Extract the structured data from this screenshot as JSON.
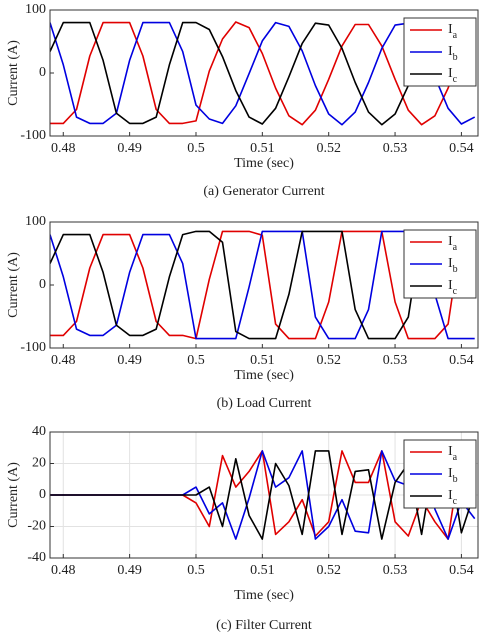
{
  "chart_data": [
    {
      "type": "line",
      "title": "(a) Generator Current",
      "xlabel": "Time (sec)",
      "ylabel": "Current (A)",
      "x": [
        0.478,
        0.48,
        0.482,
        0.484,
        0.486,
        0.488,
        0.49,
        0.492,
        0.494,
        0.496,
        0.498,
        0.5,
        0.502,
        0.504,
        0.506,
        0.508,
        0.51,
        0.512,
        0.514,
        0.516,
        0.518,
        0.52,
        0.522,
        0.524,
        0.526,
        0.528,
        0.53,
        0.532,
        0.534,
        0.536,
        0.538,
        0.54,
        0.542
      ],
      "series": [
        {
          "name": "Ia",
          "color": "#e00000",
          "values": [
            -80,
            -80,
            -58,
            27,
            80,
            80,
            80,
            27,
            -58,
            -80,
            -80,
            -76,
            3,
            54,
            81,
            72,
            31,
            -24,
            -68,
            -82,
            -59,
            -10,
            43,
            77,
            77,
            43,
            -10,
            -59,
            -82,
            -68,
            -24,
            31,
            72
          ]
        },
        {
          "name": "Ib",
          "color": "#0000e0",
          "values": [
            80,
            13,
            -70,
            -80,
            -80,
            -64,
            20,
            80,
            80,
            80,
            34,
            -51,
            -73,
            -80,
            -52,
            -1,
            51,
            80,
            74,
            35,
            -20,
            -65,
            -82,
            -62,
            -15,
            39,
            76,
            79,
            47,
            -6,
            -56,
            -81,
            -70
          ]
        },
        {
          "name": "Ic",
          "color": "#000000",
          "values": [
            34,
            80,
            80,
            80,
            20,
            -64,
            -80,
            -80,
            -70,
            13,
            80,
            80,
            69,
            26,
            -28,
            -70,
            -81,
            -56,
            -6,
            47,
            79,
            76,
            39,
            -15,
            -62,
            -82,
            -65,
            -20,
            35,
            74,
            80,
            51,
            -1
          ]
        }
      ],
      "xlim": [
        0.478,
        0.5425
      ],
      "ylim": [
        -100,
        100
      ],
      "xticks": [
        0.48,
        0.49,
        0.5,
        0.51,
        0.52,
        0.53,
        0.54
      ],
      "yticks": [
        -100,
        0,
        100
      ],
      "grid": false,
      "legend": "upper right"
    },
    {
      "type": "line",
      "title": "(b) Load Current",
      "xlabel": "Time (sec)",
      "ylabel": "Current (A)",
      "x": [
        0.478,
        0.48,
        0.482,
        0.484,
        0.486,
        0.488,
        0.49,
        0.492,
        0.494,
        0.496,
        0.498,
        0.5,
        0.502,
        0.504,
        0.506,
        0.508,
        0.51,
        0.512,
        0.514,
        0.516,
        0.518,
        0.52,
        0.522,
        0.524,
        0.526,
        0.528,
        0.53,
        0.532,
        0.534,
        0.536,
        0.538,
        0.54,
        0.542
      ],
      "series": [
        {
          "name": "Ia",
          "color": "#e00000",
          "values": [
            -80,
            -80,
            -58,
            27,
            80,
            80,
            80,
            27,
            -58,
            -80,
            -80,
            -85,
            9,
            85,
            85,
            85,
            79,
            -62,
            -85,
            -85,
            -85,
            -27,
            85,
            85,
            85,
            85,
            -27,
            -85,
            -85,
            -85,
            -62,
            79,
            85
          ]
        },
        {
          "name": "Ib",
          "color": "#0000e0",
          "values": [
            80,
            13,
            -70,
            -80,
            -80,
            -64,
            20,
            80,
            80,
            80,
            34,
            -85,
            -85,
            -85,
            -85,
            -3,
            85,
            85,
            85,
            85,
            -51,
            -85,
            -85,
            -85,
            -39,
            85,
            85,
            85,
            85,
            -15,
            -85,
            -85,
            -85
          ]
        },
        {
          "name": "Ic",
          "color": "#000000",
          "values": [
            34,
            80,
            80,
            80,
            20,
            -64,
            -80,
            -80,
            -70,
            13,
            80,
            85,
            85,
            68,
            -74,
            -85,
            -85,
            -85,
            -15,
            85,
            85,
            85,
            85,
            -39,
            -85,
            -85,
            -85,
            -51,
            85,
            85,
            85,
            85,
            -3
          ]
        }
      ],
      "xlim": [
        0.478,
        0.5425
      ],
      "ylim": [
        -100,
        100
      ],
      "xticks": [
        0.48,
        0.49,
        0.5,
        0.51,
        0.52,
        0.53,
        0.54
      ],
      "yticks": [
        -100,
        0,
        100
      ],
      "grid": false,
      "legend": "upper right"
    },
    {
      "type": "line",
      "title": "(c) Filter Current",
      "xlabel": "Time (sec)",
      "ylabel": "Current (A)",
      "x": [
        0.478,
        0.48,
        0.482,
        0.484,
        0.486,
        0.488,
        0.49,
        0.492,
        0.494,
        0.496,
        0.498,
        0.5,
        0.502,
        0.504,
        0.506,
        0.508,
        0.51,
        0.512,
        0.514,
        0.516,
        0.518,
        0.52,
        0.522,
        0.524,
        0.526,
        0.528,
        0.53,
        0.532,
        0.534,
        0.536,
        0.538,
        0.54,
        0.542
      ],
      "series": [
        {
          "name": "Ia",
          "color": "#e00000",
          "values": [
            0,
            0,
            0,
            0,
            0,
            0,
            0,
            0,
            0,
            0,
            0,
            -5,
            -20,
            25,
            5,
            15,
            28,
            -25,
            -17,
            -3,
            -26,
            -17,
            28,
            8,
            8,
            28,
            -17,
            -26,
            -3,
            -17,
            -28,
            28,
            13
          ]
        },
        {
          "name": "Ib",
          "color": "#0000e0",
          "values": [
            0,
            0,
            0,
            0,
            0,
            0,
            0,
            0,
            0,
            0,
            0,
            5,
            -12,
            -5,
            -28,
            -2,
            28,
            5,
            11,
            28,
            -28,
            -20,
            -3,
            -23,
            -24,
            28,
            9,
            6,
            28,
            -9,
            -28,
            -4,
            -15
          ]
        },
        {
          "name": "Ic",
          "color": "#000000",
          "values": [
            0,
            0,
            0,
            0,
            0,
            0,
            0,
            0,
            0,
            0,
            0,
            0,
            5,
            -20,
            23,
            -13,
            -28,
            20,
            6,
            -25,
            28,
            28,
            -25,
            15,
            16,
            -28,
            8,
            20,
            -25,
            26,
            28,
            -24,
            2
          ]
        }
      ],
      "xlim": [
        0.478,
        0.5425
      ],
      "ylim": [
        -40,
        40
      ],
      "xticks": [
        0.48,
        0.49,
        0.5,
        0.51,
        0.52,
        0.53,
        0.54
      ],
      "yticks": [
        -40,
        -20,
        0,
        20,
        40
      ],
      "grid": true,
      "legend": "upper right"
    }
  ]
}
